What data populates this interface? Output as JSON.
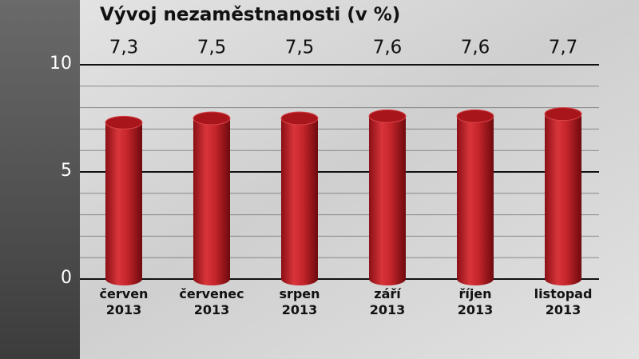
{
  "chart_data": {
    "type": "bar",
    "title": "Vývoj nezaměstnanosti (v %)",
    "categories": [
      "červen 2013",
      "červenec 2013",
      "srpen 2013",
      "září 2013",
      "říjen 2013",
      "listopad 2013"
    ],
    "values": [
      7.3,
      7.5,
      7.5,
      7.6,
      7.6,
      7.7
    ],
    "value_labels": [
      "7,3",
      "7,5",
      "7,5",
      "7,6",
      "7,6",
      "7,7"
    ],
    "color": "#c0262c",
    "ylim": [
      0,
      10
    ],
    "yticks": [
      0,
      5,
      10
    ],
    "minor_yticks": [
      1,
      2,
      3,
      4,
      6,
      7,
      8,
      9
    ],
    "grid": true
  }
}
